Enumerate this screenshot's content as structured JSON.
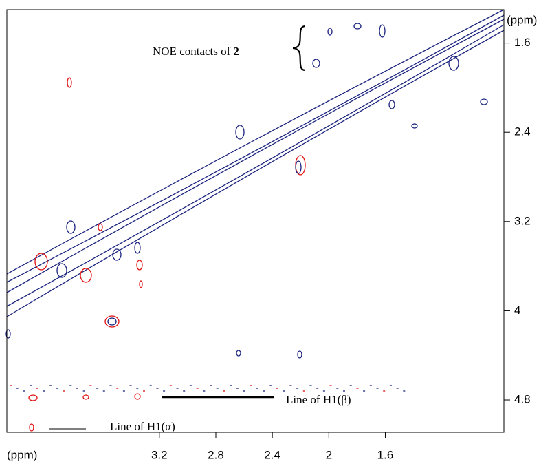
{
  "chart_data": {
    "type": "contour",
    "x_label": "(ppm)",
    "y_label": "(ppm)",
    "xlim": [
      4.28,
      0.76
    ],
    "xticks": [
      3.2,
      2.8,
      2.4,
      2.0,
      1.6
    ],
    "ylim": [
      1.3,
      5.09
    ],
    "yticks": [
      1.6,
      2.4,
      3.2,
      4.0,
      4.8
    ],
    "annotations": {
      "noe": "NOE contacts of",
      "noe_bold": "2",
      "beta": "Line of H1(β)",
      "alpha": "Line of H1(α)"
    }
  }
}
